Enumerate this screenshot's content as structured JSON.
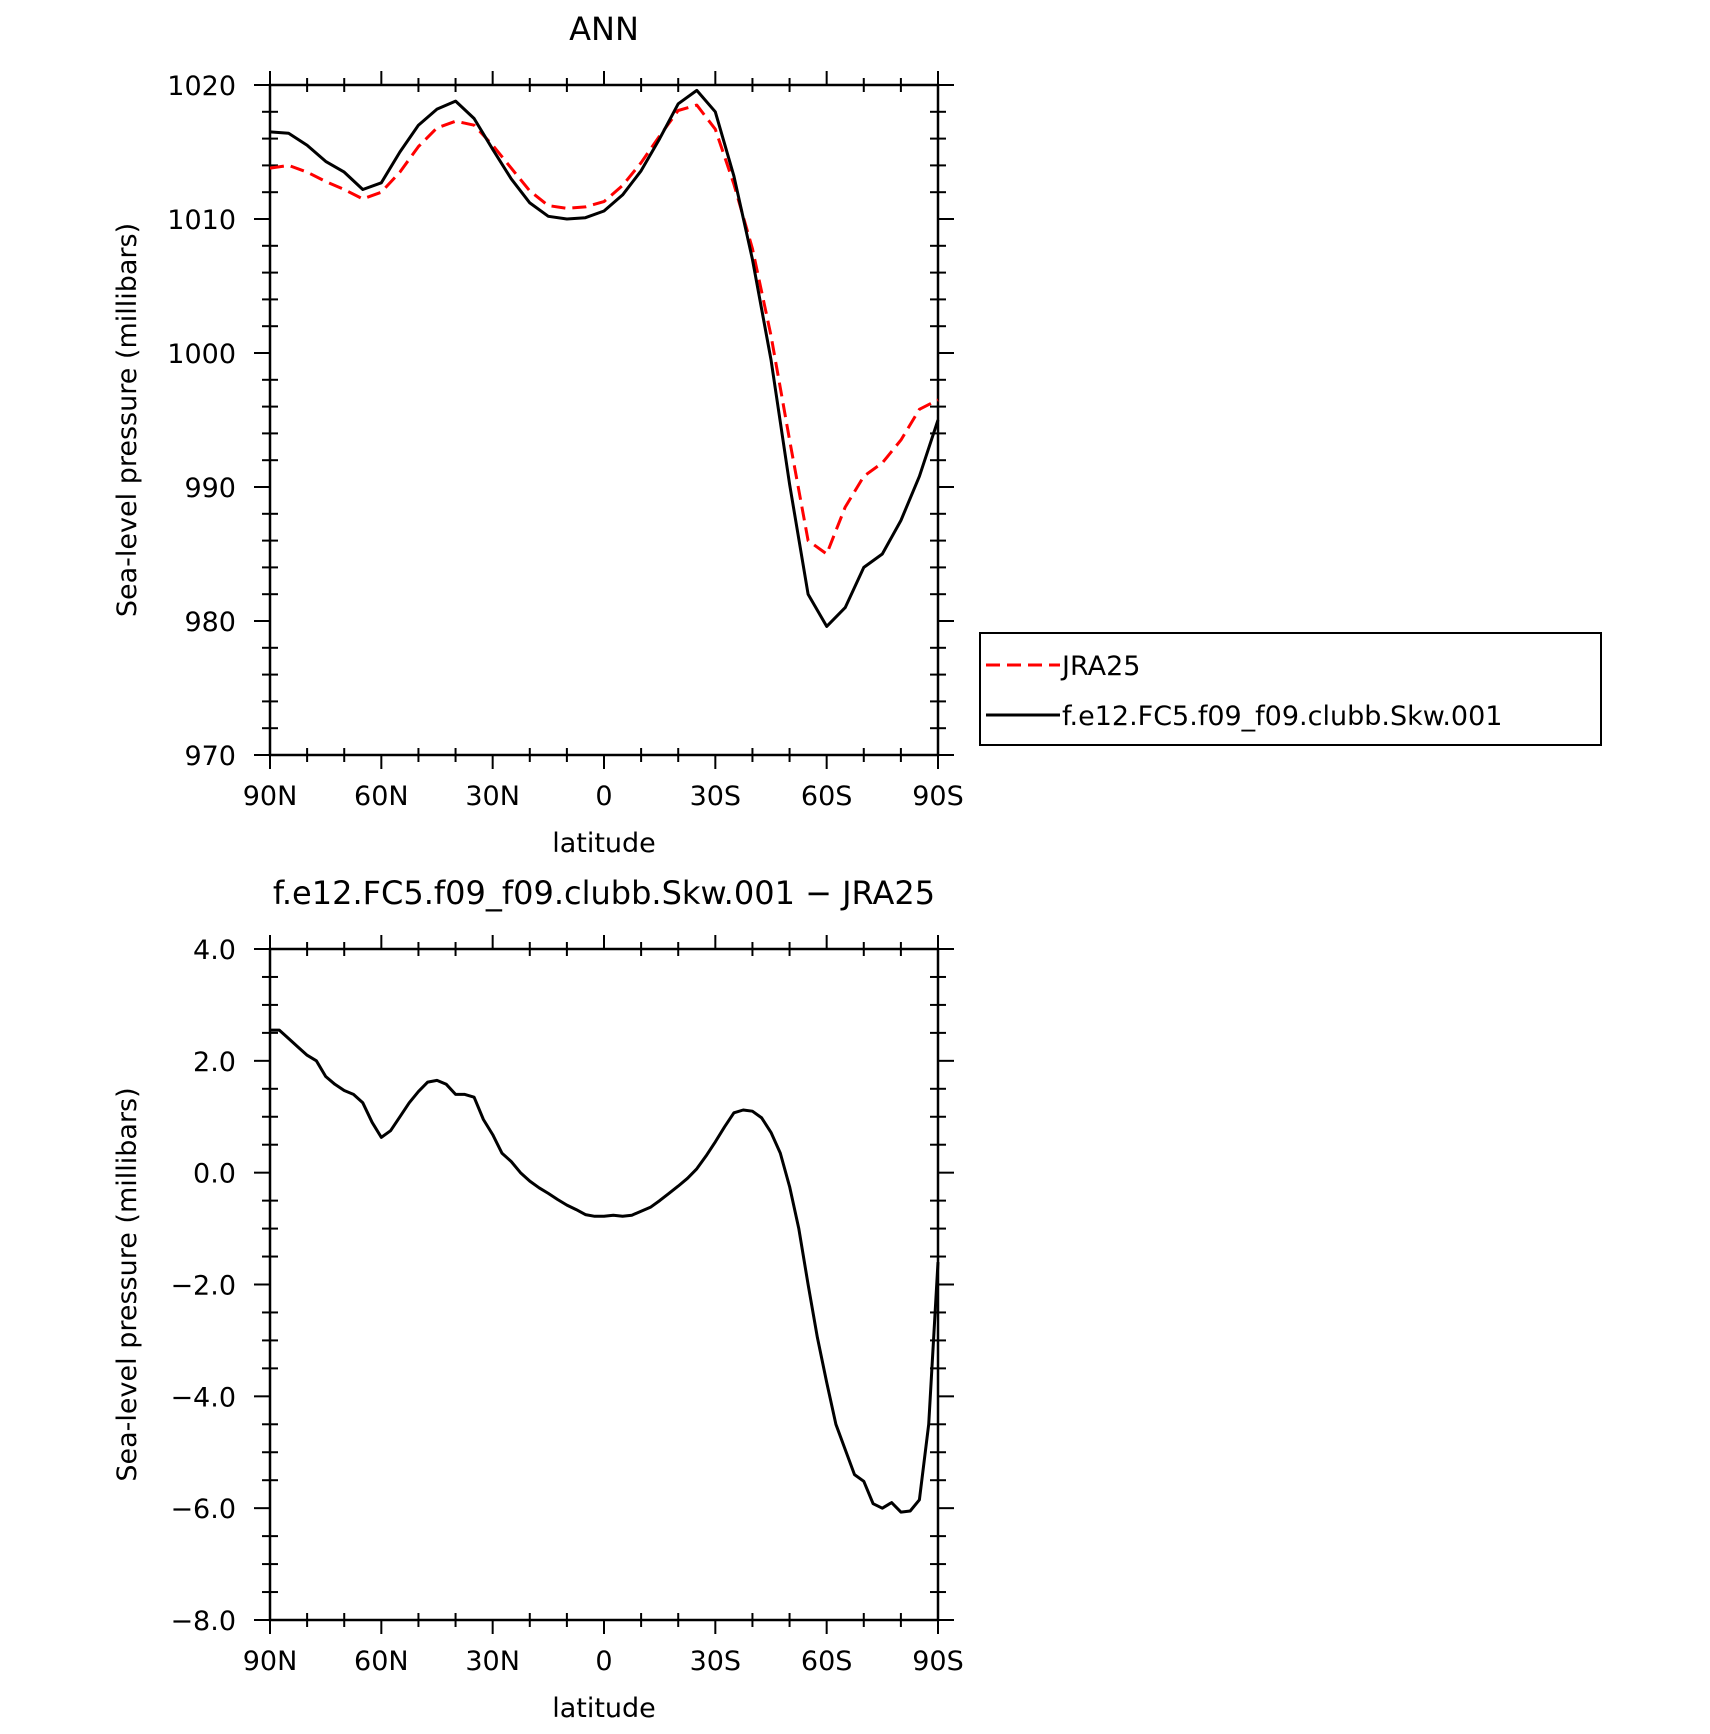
{
  "chart_data": [
    {
      "type": "line",
      "title": "ANN",
      "xlabel": "latitude",
      "ylabel": "Sea-level pressure (millibars)",
      "x_axis_direction": "90N (left) to 90S (right)",
      "xticks": [
        {
          "value": 90,
          "label": "90N"
        },
        {
          "value": 60,
          "label": "60N"
        },
        {
          "value": 30,
          "label": "30N"
        },
        {
          "value": 0,
          "label": "0"
        },
        {
          "value": -30,
          "label": "30S"
        },
        {
          "value": -60,
          "label": "60S"
        },
        {
          "value": -90,
          "label": "90S"
        }
      ],
      "yticks": [
        {
          "value": 1020,
          "label": "1020"
        },
        {
          "value": 1010,
          "label": "1010"
        },
        {
          "value": 1000,
          "label": "1000"
        },
        {
          "value": 990,
          "label": "990"
        },
        {
          "value": 980,
          "label": "980"
        },
        {
          "value": 970,
          "label": "970"
        }
      ],
      "xlim": [
        90,
        -90
      ],
      "ylim": [
        970,
        1020
      ],
      "grid": false,
      "legend_position": "right",
      "x": [
        90,
        85,
        80,
        75,
        70,
        65,
        60,
        55,
        50,
        45,
        40,
        35,
        30,
        25,
        20,
        15,
        10,
        5,
        0,
        -5,
        -10,
        -15,
        -20,
        -25,
        -30,
        -35,
        -40,
        -45,
        -50,
        -55,
        -60,
        -65,
        -70,
        -75,
        -80,
        -85,
        -90
      ],
      "series": [
        {
          "name": "JRA25",
          "color": "#ff0000",
          "dash": "dashed",
          "values": [
            1013.8,
            1014.0,
            1013.5,
            1012.8,
            1012.2,
            1011.5,
            1012.0,
            1013.5,
            1015.4,
            1016.8,
            1017.3,
            1017.0,
            1015.5,
            1013.8,
            1012.1,
            1011.0,
            1010.8,
            1010.9,
            1011.3,
            1012.5,
            1014.2,
            1016.2,
            1018.1,
            1018.5,
            1016.7,
            1012.6,
            1007.8,
            1001.3,
            993.5,
            986.0,
            985.0,
            988.5,
            990.8,
            991.8,
            993.5,
            995.8,
            996.5
          ]
        },
        {
          "name": "f.e12.FC5.f09_f09.clubb.Skw.001",
          "color": "#000000",
          "dash": "solid",
          "values": [
            1016.5,
            1016.4,
            1015.5,
            1014.3,
            1013.5,
            1012.2,
            1012.7,
            1015.0,
            1017.0,
            1018.2,
            1018.8,
            1017.5,
            1015.2,
            1013.0,
            1011.2,
            1010.2,
            1010.0,
            1010.1,
            1010.6,
            1011.8,
            1013.6,
            1016.0,
            1018.6,
            1019.6,
            1018.0,
            1013.2,
            1007.0,
            999.5,
            990.2,
            982.0,
            979.6,
            981.0,
            984.0,
            985.0,
            987.5,
            990.8,
            995.0
          ]
        }
      ]
    },
    {
      "type": "line",
      "title": "f.e12.FC5.f09_f09.clubb.Skw.001 − JRA25",
      "xlabel": "latitude",
      "ylabel": "Sea-level pressure (millibars)",
      "x_axis_direction": "90N (left) to 90S (right)",
      "xticks": [
        {
          "value": 90,
          "label": "90N"
        },
        {
          "value": 60,
          "label": "60N"
        },
        {
          "value": 30,
          "label": "30N"
        },
        {
          "value": 0,
          "label": "0"
        },
        {
          "value": -30,
          "label": "30S"
        },
        {
          "value": -60,
          "label": "60S"
        },
        {
          "value": -90,
          "label": "90S"
        }
      ],
      "yticks": [
        {
          "value": 4,
          "label": "4.0"
        },
        {
          "value": 2,
          "label": "2.0"
        },
        {
          "value": 0,
          "label": "0.0"
        },
        {
          "value": -2,
          "label": "−2.0"
        },
        {
          "value": -4,
          "label": "−4.0"
        },
        {
          "value": -6,
          "label": "−6.0"
        },
        {
          "value": -8,
          "label": "−8.0"
        }
      ],
      "xlim": [
        90,
        -90
      ],
      "ylim": [
        -8,
        4
      ],
      "grid": false,
      "x": [
        90,
        87.5,
        85,
        82.5,
        80,
        77.5,
        75,
        72.5,
        70,
        67.5,
        65,
        62.5,
        60,
        57.5,
        55,
        52.5,
        50,
        47.5,
        45,
        42.5,
        40,
        37.5,
        35,
        32.5,
        30,
        27.5,
        25,
        22.5,
        20,
        17.5,
        15,
        12.5,
        10,
        7.5,
        5,
        2.5,
        0,
        -2.5,
        -5,
        -7.5,
        -10,
        -12.5,
        -15,
        -17.5,
        -20,
        -22.5,
        -25,
        -27.5,
        -30,
        -32.5,
        -35,
        -37.5,
        -40,
        -42.5,
        -45,
        -47.5,
        -50,
        -52.5,
        -55,
        -57.5,
        -60,
        -62.5,
        -65,
        -67.5,
        -70,
        -72.5,
        -75,
        -77.5,
        -80,
        -82.5,
        -85,
        -87.5,
        -90
      ],
      "series": [
        {
          "color": "#000000",
          "dash": "solid",
          "values": [
            2.55,
            2.55,
            2.4,
            2.25,
            2.1,
            2.0,
            1.72,
            1.58,
            1.47,
            1.4,
            1.25,
            0.9,
            0.63,
            0.75,
            1.0,
            1.25,
            1.45,
            1.62,
            1.65,
            1.58,
            1.4,
            1.4,
            1.35,
            0.95,
            0.68,
            0.35,
            0.2,
            0.0,
            -0.15,
            -0.27,
            -0.37,
            -0.48,
            -0.58,
            -0.66,
            -0.75,
            -0.78,
            -0.78,
            -0.76,
            -0.78,
            -0.76,
            -0.69,
            -0.62,
            -0.5,
            -0.37,
            -0.24,
            -0.1,
            0.07,
            0.3,
            0.55,
            0.82,
            1.07,
            1.12,
            1.1,
            0.98,
            0.72,
            0.35,
            -0.25,
            -1.0,
            -2.0,
            -2.95,
            -3.75,
            -4.5,
            -4.95,
            -5.4,
            -5.52,
            -5.92,
            -6.0,
            -5.9,
            -6.07,
            -6.05,
            -5.85,
            -4.5,
            -1.6
          ]
        }
      ]
    }
  ]
}
